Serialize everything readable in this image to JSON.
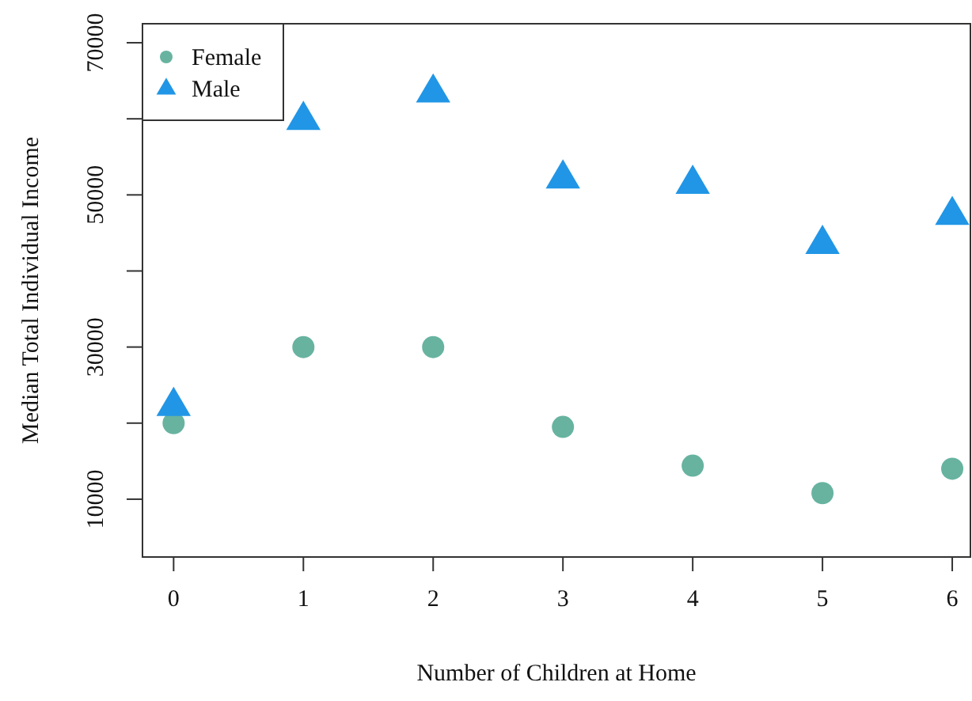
{
  "chart_data": {
    "type": "scatter",
    "xlabel": "Number of Children at Home",
    "ylabel": "Median Total Individual Income",
    "x": [
      0,
      1,
      2,
      3,
      4,
      5,
      6
    ],
    "series": [
      {
        "name": "Female",
        "color": "#67b3a0",
        "marker": "circle",
        "values": [
          20000,
          30000,
          30000,
          19500,
          14400,
          10800,
          14000
        ]
      },
      {
        "name": "Male",
        "color": "#2196e6",
        "marker": "triangle",
        "values": [
          22300,
          59900,
          63500,
          52200,
          51500,
          43600,
          47400
        ]
      }
    ],
    "xlim": [
      -0.24,
      6.14
    ],
    "xticks": [
      0,
      1,
      2,
      3,
      4,
      5,
      6
    ],
    "ylim": [
      2400,
      72500
    ],
    "yticks": [
      10000,
      {
        "value": 20000,
        "label": null
      },
      30000,
      {
        "value": 40000,
        "label": null
      },
      50000,
      {
        "value": 60000,
        "label": null
      },
      70000
    ],
    "grid": false,
    "legend": "top left"
  }
}
